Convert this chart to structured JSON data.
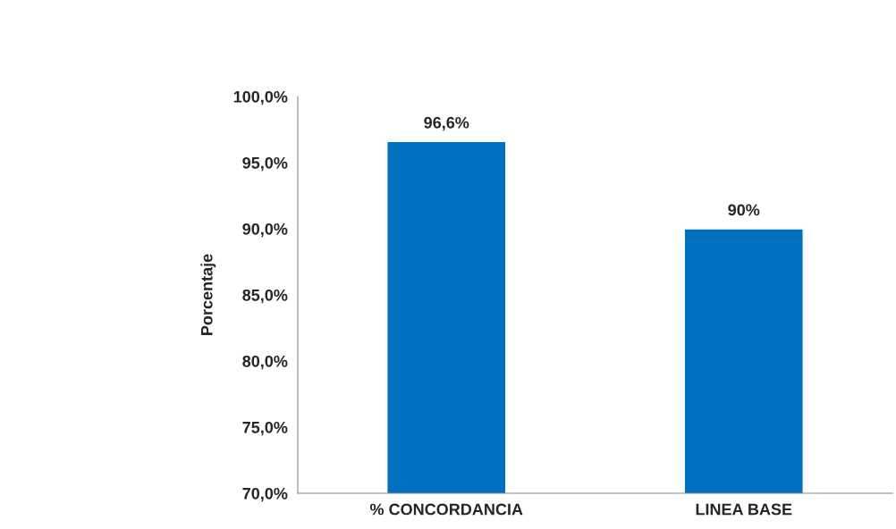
{
  "chart_data": {
    "type": "bar",
    "ylabel": "Porcentaje",
    "categories": [
      "% CONCORDANCIA",
      "LINEA BASE"
    ],
    "values": [
      96.6,
      90
    ],
    "value_labels": [
      "96,6%",
      "90%"
    ],
    "color": "#0070c0",
    "ylim": [
      70,
      100
    ],
    "yticks": [
      {
        "value": 70,
        "label": "70,0%"
      },
      {
        "value": 75,
        "label": "75,0%"
      },
      {
        "value": 80,
        "label": "80,0%"
      },
      {
        "value": 85,
        "label": "85,0%"
      },
      {
        "value": 90,
        "label": "90,0%"
      },
      {
        "value": 95,
        "label": "95,0%"
      },
      {
        "value": 100,
        "label": "100,0%"
      }
    ],
    "grid": false,
    "legend": false
  }
}
